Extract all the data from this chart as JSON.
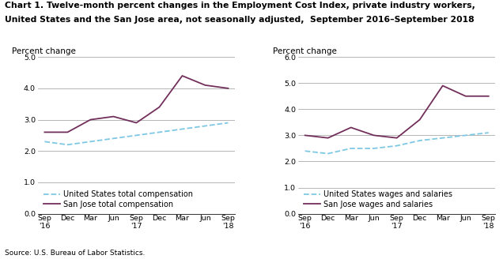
{
  "title_line1": "Chart 1. Twelve-month percent changes in the Employment Cost Index, private industry workers,",
  "title_line2": "United States and the San Jose area, not seasonally adjusted,  September 2016–September 2018",
  "source": "Source: U.S. Bureau of Labor Statistics.",
  "chart1": {
    "ylabel": "Percent change",
    "ylim": [
      0.0,
      5.0
    ],
    "yticks": [
      0.0,
      1.0,
      2.0,
      3.0,
      4.0,
      5.0
    ],
    "us_vals": [
      2.3,
      2.2,
      2.3,
      2.4,
      2.5,
      2.6,
      2.7,
      2.8,
      2.9
    ],
    "sj_vals": [
      2.6,
      2.6,
      3.0,
      3.1,
      2.9,
      3.4,
      4.4,
      4.1,
      4.0
    ],
    "legend_us": "United States total compensation",
    "legend_sj": "San Jose total compensation"
  },
  "chart2": {
    "ylabel": "Percent change",
    "ylim": [
      0.0,
      6.0
    ],
    "yticks": [
      0.0,
      1.0,
      2.0,
      3.0,
      4.0,
      5.0,
      6.0
    ],
    "us_vals": [
      2.4,
      2.3,
      2.5,
      2.5,
      2.6,
      2.8,
      2.9,
      3.0,
      3.1
    ],
    "sj_vals": [
      3.0,
      2.9,
      3.3,
      3.0,
      2.9,
      3.6,
      4.9,
      4.5,
      4.5
    ],
    "legend_us": "United States wages and salaries",
    "legend_sj": "San Jose wages and salaries"
  },
  "x_tick_labels": [
    "Sep\n'16",
    "Dec",
    "Mar",
    "Jun",
    "Sep\n'17",
    "Dec",
    "Mar",
    "Jun",
    "Sep\n'18"
  ],
  "us_color": "#7EC8E3",
  "sj_color": "#722F5B",
  "us_linestyle": "--",
  "sj_linestyle": "-",
  "linewidth": 1.3,
  "grid_color": "#999999",
  "bg_color": "#FFFFFF",
  "title_fontsize": 7.8,
  "ylabel_fontsize": 7.5,
  "tick_fontsize": 6.8,
  "legend_fontsize": 7.0,
  "source_fontsize": 6.5
}
